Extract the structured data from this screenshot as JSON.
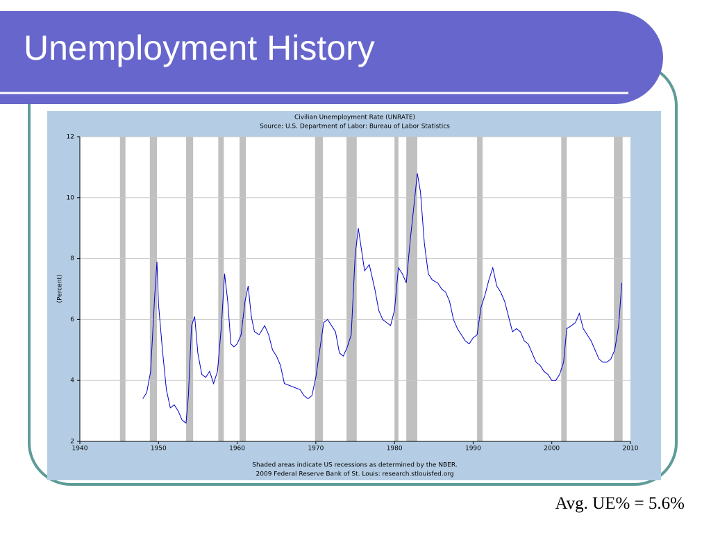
{
  "title": "Unemployment History",
  "note": "Avg. UE% = 5.6%",
  "chart_data": {
    "type": "line",
    "title": "Civilian Unemployment Rate (UNRATE)",
    "subtitle": "Source: U.S. Department of Labor: Bureau of Labor Statistics",
    "ylabel": "(Percent)",
    "notes": [
      "Shaded areas indicate US recessions as determined by the NBER.",
      "2009 Federal Reserve Bank of St. Louis: research.stlouisfed.org"
    ],
    "color": "#0000cc",
    "recession_color": "#c0c0c0",
    "grid": true,
    "xlim": [
      1940,
      2010
    ],
    "xticks": [
      1940,
      1950,
      1960,
      1970,
      1980,
      1990,
      2000,
      2010
    ],
    "ylim": [
      2,
      12
    ],
    "yticks": [
      2,
      4,
      6,
      8,
      10,
      12
    ],
    "recessions": [
      [
        1945.1,
        1945.8
      ],
      [
        1948.9,
        1949.8
      ],
      [
        1953.5,
        1954.4
      ],
      [
        1957.6,
        1958.3
      ],
      [
        1960.3,
        1961.1
      ],
      [
        1969.9,
        1970.9
      ],
      [
        1973.9,
        1975.2
      ],
      [
        1980.0,
        1980.5
      ],
      [
        1981.5,
        1982.9
      ],
      [
        1990.5,
        1991.2
      ],
      [
        2001.2,
        2001.9
      ],
      [
        2007.9,
        2009.0
      ]
    ],
    "x": [
      1948.0,
      1948.5,
      1949.0,
      1949.5,
      1949.8,
      1950.0,
      1950.5,
      1951.0,
      1951.5,
      1952.0,
      1952.5,
      1953.0,
      1953.5,
      1953.8,
      1954.2,
      1954.6,
      1955.0,
      1955.5,
      1956.0,
      1956.5,
      1957.0,
      1957.5,
      1958.0,
      1958.4,
      1958.8,
      1959.2,
      1959.6,
      1960.0,
      1960.5,
      1961.0,
      1961.4,
      1961.8,
      1962.2,
      1962.8,
      1963.5,
      1964.0,
      1964.5,
      1965.0,
      1965.5,
      1966.0,
      1967.0,
      1968.0,
      1968.5,
      1969.0,
      1969.5,
      1970.0,
      1970.5,
      1971.0,
      1971.5,
      1972.0,
      1972.5,
      1973.0,
      1973.5,
      1974.0,
      1974.5,
      1975.0,
      1975.4,
      1975.8,
      1976.2,
      1976.8,
      1977.5,
      1978.0,
      1978.5,
      1979.0,
      1979.5,
      1980.0,
      1980.5,
      1981.0,
      1981.5,
      1982.0,
      1982.5,
      1982.9,
      1983.3,
      1983.8,
      1984.3,
      1984.8,
      1985.5,
      1986.0,
      1986.5,
      1987.0,
      1987.5,
      1988.0,
      1988.5,
      1989.0,
      1989.5,
      1990.0,
      1990.5,
      1991.0,
      1991.5,
      1992.0,
      1992.5,
      1993.0,
      1993.5,
      1994.0,
      1994.5,
      1995.0,
      1995.5,
      1996.0,
      1996.5,
      1997.0,
      1997.5,
      1998.0,
      1998.5,
      1999.0,
      1999.5,
      2000.0,
      2000.5,
      2001.0,
      2001.5,
      2001.9,
      2002.5,
      2003.0,
      2003.5,
      2004.0,
      2004.5,
      2005.0,
      2005.5,
      2006.0,
      2006.5,
      2007.0,
      2007.5,
      2008.0,
      2008.5,
      2008.9
    ],
    "values": [
      3.4,
      3.6,
      4.3,
      6.7,
      7.9,
      6.5,
      5.0,
      3.7,
      3.1,
      3.2,
      3.0,
      2.7,
      2.6,
      3.5,
      5.8,
      6.1,
      4.9,
      4.2,
      4.1,
      4.3,
      3.9,
      4.3,
      5.8,
      7.5,
      6.6,
      5.2,
      5.1,
      5.2,
      5.5,
      6.6,
      7.1,
      6.1,
      5.6,
      5.5,
      5.8,
      5.5,
      5.0,
      4.8,
      4.5,
      3.9,
      3.8,
      3.7,
      3.5,
      3.4,
      3.5,
      4.1,
      5.0,
      5.9,
      6.0,
      5.8,
      5.6,
      4.9,
      4.8,
      5.1,
      5.5,
      8.1,
      9.0,
      8.3,
      7.6,
      7.8,
      7.0,
      6.3,
      6.0,
      5.9,
      5.8,
      6.3,
      7.7,
      7.5,
      7.2,
      8.6,
      9.8,
      10.8,
      10.2,
      8.5,
      7.5,
      7.3,
      7.2,
      7.0,
      6.9,
      6.6,
      6.0,
      5.7,
      5.5,
      5.3,
      5.2,
      5.4,
      5.5,
      6.4,
      6.8,
      7.3,
      7.7,
      7.1,
      6.9,
      6.6,
      6.1,
      5.6,
      5.7,
      5.6,
      5.3,
      5.2,
      4.9,
      4.6,
      4.5,
      4.3,
      4.2,
      4.0,
      4.0,
      4.2,
      4.6,
      5.7,
      5.8,
      5.9,
      6.2,
      5.7,
      5.5,
      5.3,
      5.0,
      4.7,
      4.6,
      4.6,
      4.7,
      5.0,
      5.8,
      7.2
    ]
  }
}
